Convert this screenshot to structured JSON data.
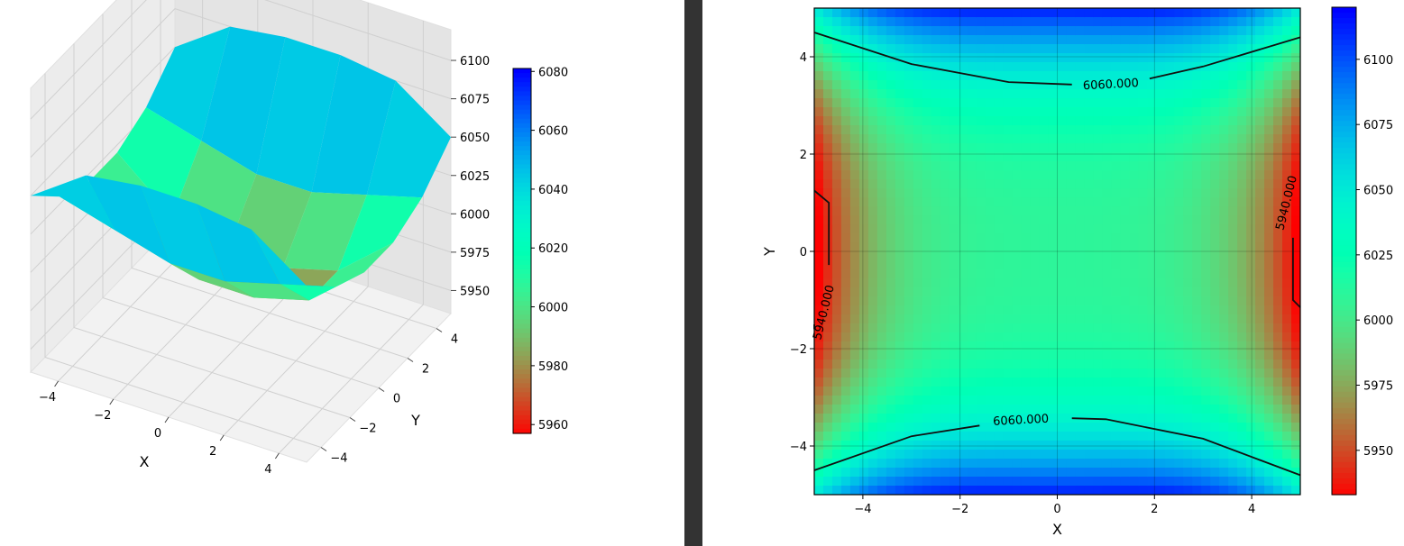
{
  "chart_data": [
    {
      "type": "surface3d",
      "colormap": "rainbow_r",
      "x_ticks": [
        "−4",
        "−2",
        "0",
        "2",
        "4"
      ],
      "y_ticks": [
        "−4",
        "−2",
        "0",
        "2",
        "4"
      ],
      "z_ticks": [
        "5950",
        "5975",
        "6000",
        "6025",
        "6050",
        "6075",
        "6100"
      ],
      "xlabel": "X",
      "ylabel": "Y",
      "zlabel": "",
      "xlim": [
        -5,
        5
      ],
      "ylim": [
        -5,
        5
      ],
      "zlim": [
        5935,
        6120
      ],
      "grid_x": [
        -5,
        -3,
        -1,
        1,
        3,
        5
      ],
      "grid_y": [
        -5,
        -3,
        -1,
        1,
        3,
        5
      ],
      "z_values": [
        [
          6050,
          6030,
          6020,
          6020,
          6030,
          6050
        ],
        [
          6075,
          6020,
          5990,
          5990,
          6020,
          6075
        ],
        [
          6080,
          6010,
          5980,
          5980,
          6010,
          6080
        ],
        [
          6080,
          6010,
          5980,
          5980,
          6010,
          6080
        ],
        [
          6075,
          6020,
          5990,
          5990,
          6020,
          6075
        ],
        [
          6050,
          6030,
          6020,
          6020,
          6030,
          6050
        ]
      ],
      "colorbar": {
        "ticks": [
          "6080",
          "6060",
          "6040",
          "6020",
          "6000",
          "5980",
          "5960"
        ],
        "range": [
          5957,
          6081
        ]
      }
    },
    {
      "type": "heatmap",
      "colormap": "rainbow_r",
      "x_ticks": [
        "−4",
        "−2",
        "0",
        "2",
        "4"
      ],
      "y_ticks": [
        "4",
        "2",
        "0",
        "−2",
        "−4"
      ],
      "xlabel": "X",
      "ylabel": "Y",
      "xlim": [
        -5,
        5
      ],
      "ylim": [
        -5,
        5
      ],
      "grid": true,
      "contour_labels": [
        "6060.000",
        "6060.000",
        "5940.000",
        "5940.000"
      ],
      "contour_levels": [
        5940,
        6060
      ],
      "colorbar": {
        "ticks": [
          "6100",
          "6075",
          "6050",
          "6025",
          "6000",
          "5975",
          "5950"
        ],
        "range": [
          5933,
          6120
        ]
      }
    }
  ]
}
